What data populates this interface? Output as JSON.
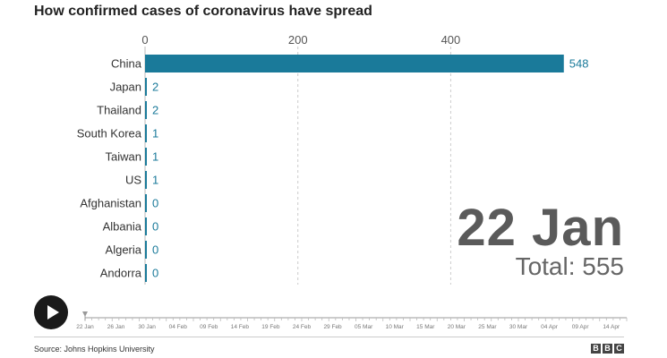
{
  "chart_data": {
    "type": "bar",
    "title": "How confirmed cases of coronavirus have spread",
    "orientation": "horizontal",
    "categories": [
      "China",
      "Japan",
      "Thailand",
      "South Korea",
      "Taiwan",
      "US",
      "Afghanistan",
      "Albania",
      "Algeria",
      "Andorra"
    ],
    "values": [
      548,
      2,
      2,
      1,
      1,
      1,
      0,
      0,
      0,
      0
    ],
    "value_labels": [
      "548",
      "2",
      "2",
      "1",
      "1",
      "1",
      "0",
      "0",
      "0",
      "0"
    ],
    "x_ticks": [
      0,
      200,
      400
    ],
    "x_tick_labels": [
      "0",
      "200",
      "400"
    ],
    "xlim": [
      0,
      560
    ],
    "grid": "vertical dashed",
    "bar_color": "#1a7a9a",
    "label_color": "#1a7a9a"
  },
  "overlay": {
    "date": "22 Jan",
    "total": "Total: 555"
  },
  "timeline": {
    "labels": [
      "22 Jan",
      "26 Jan",
      "30 Jan",
      "04 Feb",
      "09 Feb",
      "14 Feb",
      "19 Feb",
      "24 Feb",
      "29 Feb",
      "05 Mar",
      "10 Mar",
      "15 Mar",
      "20 Mar",
      "25 Mar",
      "30 Mar",
      "04 Apr",
      "09 Apr",
      "14 Apr"
    ],
    "current_index": 0
  },
  "controls": {
    "play_icon": "play-icon"
  },
  "footer": {
    "source": "Source: Johns Hopkins University",
    "logo": [
      "B",
      "B",
      "C"
    ]
  }
}
